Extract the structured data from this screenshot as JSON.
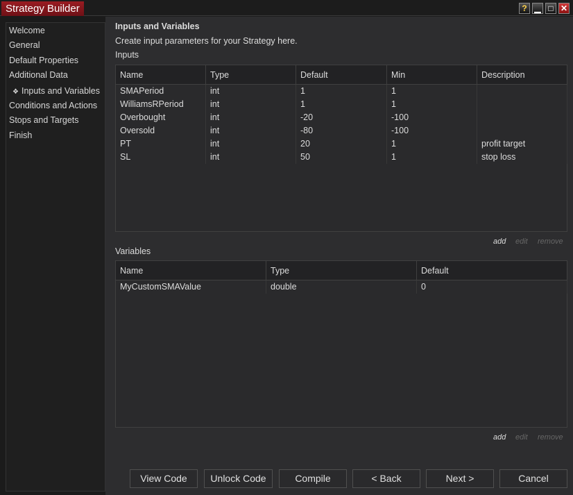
{
  "window": {
    "title": "Strategy Builder",
    "help": "?",
    "minimize": "▁",
    "maximize": "□",
    "close": "✕"
  },
  "sidebar": {
    "items": [
      {
        "label": "Welcome"
      },
      {
        "label": "General"
      },
      {
        "label": "Default Properties"
      },
      {
        "label": "Additional Data"
      },
      {
        "label": "Inputs and Variables",
        "active": true,
        "marker": "❖"
      },
      {
        "label": "Conditions and Actions"
      },
      {
        "label": "Stops and Targets"
      },
      {
        "label": "Finish"
      }
    ]
  },
  "main": {
    "heading": "Inputs and Variables",
    "description": "Create input parameters for your Strategy here.",
    "inputs": {
      "label": "Inputs",
      "columns": [
        "Name",
        "Type",
        "Default",
        "Min",
        "Description"
      ],
      "rows": [
        [
          "SMAPeriod",
          "int",
          "1",
          "1",
          ""
        ],
        [
          "WilliamsRPeriod",
          "int",
          "1",
          "1",
          ""
        ],
        [
          "Overbought",
          "int",
          "-20",
          "-100",
          ""
        ],
        [
          "Oversold",
          "int",
          "-80",
          "-100",
          ""
        ],
        [
          "PT",
          "int",
          "20",
          "1",
          "profit target"
        ],
        [
          "SL",
          "int",
          "50",
          "1",
          "stop loss"
        ]
      ],
      "actions": {
        "add": "add",
        "edit": "edit",
        "remove": "remove"
      }
    },
    "variables": {
      "label": "Variables",
      "columns": [
        "Name",
        "Type",
        "Default"
      ],
      "rows": [
        [
          "MyCustomSMAValue",
          "double",
          "0"
        ]
      ],
      "actions": {
        "add": "add",
        "edit": "edit",
        "remove": "remove"
      }
    }
  },
  "buttons": {
    "view_code": "View Code",
    "unlock_code": "Unlock Code",
    "compile": "Compile",
    "back": "< Back",
    "next": "Next >",
    "cancel": "Cancel"
  }
}
